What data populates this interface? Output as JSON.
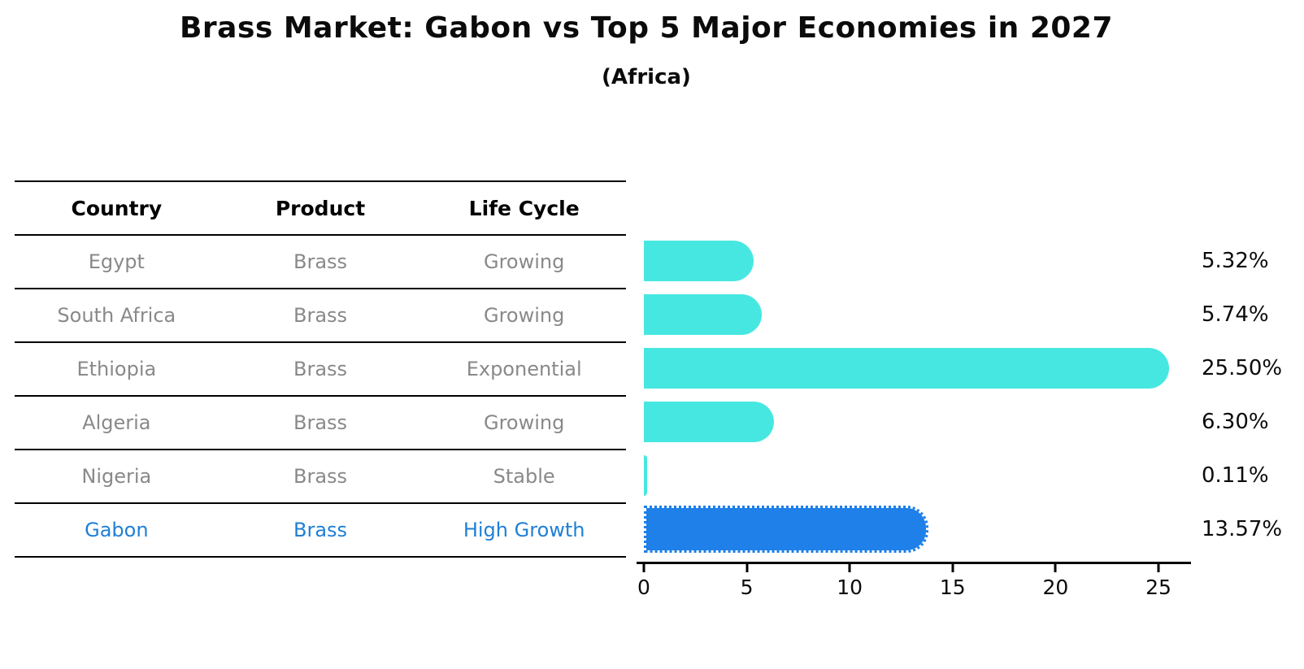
{
  "title": "Brass Market: Gabon vs Top 5 Major Economies in 2027",
  "subtitle": "(Africa)",
  "table": {
    "headers": [
      "Country",
      "Product",
      "Life Cycle"
    ],
    "rows": [
      {
        "country": "Egypt",
        "product": "Brass",
        "life_cycle": "Growing",
        "highlight": false
      },
      {
        "country": "South Africa",
        "product": "Brass",
        "life_cycle": "Growing",
        "highlight": false
      },
      {
        "country": "Ethiopia",
        "product": "Brass",
        "life_cycle": "Exponential",
        "highlight": false
      },
      {
        "country": "Algeria",
        "product": "Brass",
        "life_cycle": "Growing",
        "highlight": false
      },
      {
        "country": "Nigeria",
        "product": "Brass",
        "life_cycle": "Stable",
        "highlight": false
      },
      {
        "country": "Gabon",
        "product": "Brass",
        "life_cycle": "High Growth",
        "highlight": true
      }
    ]
  },
  "chart_data": {
    "type": "bar",
    "orientation": "horizontal",
    "title": "Brass Market: Gabon vs Top 5 Major Economies in 2027",
    "subtitle": "(Africa)",
    "categories": [
      "Egypt",
      "South Africa",
      "Ethiopia",
      "Algeria",
      "Nigeria",
      "Gabon"
    ],
    "values": [
      5.32,
      5.74,
      25.5,
      6.3,
      0.11,
      13.57
    ],
    "value_labels": [
      "5.32%",
      "5.74%",
      "25.50%",
      "6.30%",
      "0.11%",
      "13.57%"
    ],
    "highlight_index": 5,
    "x_ticks": [
      0,
      5,
      10,
      15,
      20,
      25
    ],
    "xlim": [
      0,
      26.6
    ],
    "grid": false,
    "legend": "none",
    "colors": {
      "bar_default": "#47E7E1",
      "bar_highlight": "#1E80E8",
      "highlight_text": "#1E7FD6",
      "row_text": "#898989",
      "header_text": "#000000"
    }
  }
}
